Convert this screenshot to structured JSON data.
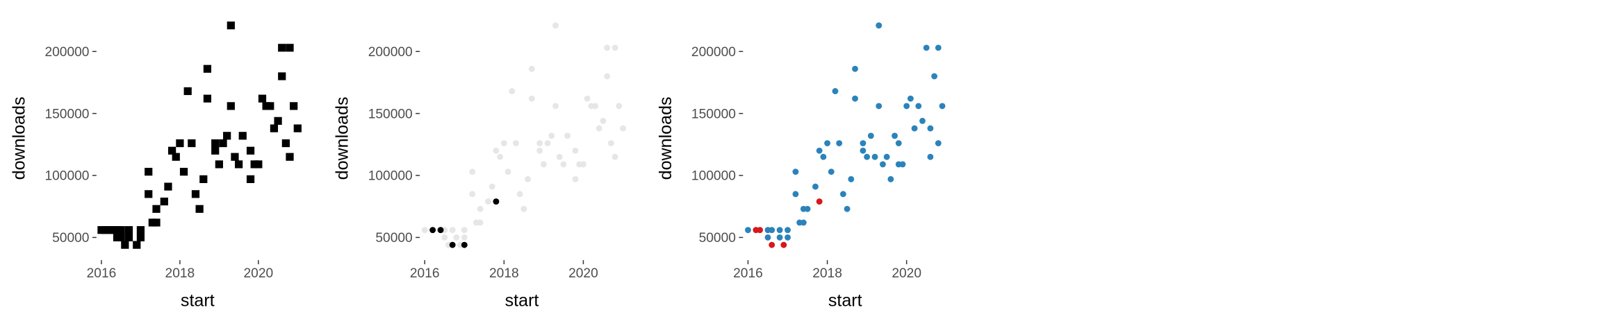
{
  "chart_data": [
    {
      "type": "scatter",
      "marker": "square",
      "xlabel": "start",
      "ylabel": "downloads",
      "xlim": [
        2015.9,
        2021.0
      ],
      "ylim": [
        35000,
        225000
      ],
      "xticks": [
        "2016",
        "2018",
        "2020"
      ],
      "yticks": [
        "50000",
        "100000",
        "150000",
        "200000"
      ],
      "grid": false,
      "colors": {
        "point": "#000000"
      },
      "points": [
        [
          2016.0,
          56000
        ],
        [
          2016.1,
          56000
        ],
        [
          2016.2,
          56000
        ],
        [
          2016.3,
          56000
        ],
        [
          2016.4,
          56000
        ],
        [
          2016.5,
          56000
        ],
        [
          2016.4,
          50000
        ],
        [
          2016.5,
          50000
        ],
        [
          2016.6,
          44000
        ],
        [
          2016.7,
          56000
        ],
        [
          2016.7,
          50000
        ],
        [
          2016.9,
          44000
        ],
        [
          2017.0,
          56000
        ],
        [
          2017.0,
          50000
        ],
        [
          2017.2,
          85000
        ],
        [
          2017.2,
          103000
        ],
        [
          2017.3,
          62000
        ],
        [
          2017.4,
          62000
        ],
        [
          2017.4,
          73000
        ],
        [
          2017.6,
          79000
        ],
        [
          2017.7,
          91000
        ],
        [
          2017.8,
          120000
        ],
        [
          2017.9,
          115000
        ],
        [
          2018.0,
          126000
        ],
        [
          2018.1,
          103000
        ],
        [
          2018.2,
          168000
        ],
        [
          2018.3,
          126000
        ],
        [
          2018.4,
          85000
        ],
        [
          2018.5,
          73000
        ],
        [
          2018.6,
          97000
        ],
        [
          2018.7,
          162000
        ],
        [
          2018.7,
          186000
        ],
        [
          2018.9,
          120000
        ],
        [
          2018.9,
          126000
        ],
        [
          2019.0,
          109000
        ],
        [
          2019.1,
          126000
        ],
        [
          2019.2,
          132000
        ],
        [
          2019.3,
          156000
        ],
        [
          2019.3,
          221000
        ],
        [
          2019.4,
          115000
        ],
        [
          2019.5,
          109000
        ],
        [
          2019.6,
          132000
        ],
        [
          2019.8,
          97000
        ],
        [
          2019.8,
          120000
        ],
        [
          2019.9,
          109000
        ],
        [
          2020.0,
          109000
        ],
        [
          2020.1,
          162000
        ],
        [
          2020.2,
          156000
        ],
        [
          2020.3,
          156000
        ],
        [
          2020.4,
          138000
        ],
        [
          2020.5,
          144000
        ],
        [
          2020.6,
          203000
        ],
        [
          2020.6,
          180000
        ],
        [
          2020.7,
          126000
        ],
        [
          2020.8,
          115000
        ],
        [
          2020.8,
          203000
        ],
        [
          2020.9,
          156000
        ],
        [
          2021.0,
          138000
        ]
      ]
    },
    {
      "type": "scatter",
      "marker": "circle",
      "xlabel": "start",
      "ylabel": "downloads",
      "xlim": [
        2015.9,
        2021.0
      ],
      "ylim": [
        35000,
        225000
      ],
      "xticks": [
        "2016",
        "2018",
        "2020"
      ],
      "yticks": [
        "50000",
        "100000",
        "150000",
        "200000"
      ],
      "grid": false,
      "colors": {
        "base": "#e6e6e6",
        "highlight": "#000000"
      },
      "points": [
        [
          2016.0,
          56000
        ],
        [
          2016.2,
          56000
        ],
        [
          2016.4,
          56000
        ],
        [
          2016.5,
          56000
        ],
        [
          2016.5,
          50000
        ],
        [
          2016.6,
          44000
        ],
        [
          2016.7,
          56000
        ],
        [
          2016.8,
          50000
        ],
        [
          2016.9,
          44000
        ],
        [
          2017.0,
          56000
        ],
        [
          2017.0,
          50000
        ],
        [
          2017.2,
          85000
        ],
        [
          2017.2,
          103000
        ],
        [
          2017.3,
          62000
        ],
        [
          2017.4,
          62000
        ],
        [
          2017.4,
          73000
        ],
        [
          2017.6,
          79000
        ],
        [
          2017.7,
          91000
        ],
        [
          2017.8,
          120000
        ],
        [
          2017.9,
          115000
        ],
        [
          2018.0,
          126000
        ],
        [
          2018.1,
          103000
        ],
        [
          2018.2,
          168000
        ],
        [
          2018.3,
          126000
        ],
        [
          2018.4,
          85000
        ],
        [
          2018.5,
          73000
        ],
        [
          2018.6,
          97000
        ],
        [
          2018.7,
          162000
        ],
        [
          2018.7,
          186000
        ],
        [
          2018.9,
          120000
        ],
        [
          2018.9,
          126000
        ],
        [
          2019.0,
          109000
        ],
        [
          2019.1,
          126000
        ],
        [
          2019.2,
          132000
        ],
        [
          2019.3,
          156000
        ],
        [
          2019.3,
          221000
        ],
        [
          2019.4,
          115000
        ],
        [
          2019.5,
          109000
        ],
        [
          2019.6,
          132000
        ],
        [
          2019.8,
          97000
        ],
        [
          2019.8,
          120000
        ],
        [
          2019.9,
          109000
        ],
        [
          2020.0,
          109000
        ],
        [
          2020.1,
          162000
        ],
        [
          2020.2,
          156000
        ],
        [
          2020.3,
          156000
        ],
        [
          2020.4,
          138000
        ],
        [
          2020.5,
          144000
        ],
        [
          2020.6,
          203000
        ],
        [
          2020.6,
          180000
        ],
        [
          2020.7,
          126000
        ],
        [
          2020.8,
          115000
        ],
        [
          2020.8,
          203000
        ],
        [
          2020.9,
          156000
        ],
        [
          2021.0,
          138000
        ]
      ],
      "highlighted_points": [
        [
          2016.2,
          56000
        ],
        [
          2016.4,
          56000
        ],
        [
          2016.7,
          44000
        ],
        [
          2017.0,
          44000
        ],
        [
          2017.8,
          79000
        ]
      ]
    },
    {
      "type": "scatter",
      "marker": "circle",
      "xlabel": "start",
      "ylabel": "downloads",
      "xlim": [
        2015.9,
        2021.0
      ],
      "ylim": [
        35000,
        225000
      ],
      "xticks": [
        "2016",
        "2018",
        "2020"
      ],
      "yticks": [
        "50000",
        "100000",
        "150000",
        "200000"
      ],
      "grid": false,
      "colors": {
        "base": "#2b83ba",
        "highlight": "#d7191c"
      },
      "points": [
        [
          2016.0,
          56000
        ],
        [
          2016.5,
          56000
        ],
        [
          2016.5,
          50000
        ],
        [
          2016.6,
          56000
        ],
        [
          2016.8,
          50000
        ],
        [
          2016.8,
          56000
        ],
        [
          2017.0,
          56000
        ],
        [
          2017.0,
          50000
        ],
        [
          2017.2,
          85000
        ],
        [
          2017.2,
          103000
        ],
        [
          2017.3,
          62000
        ],
        [
          2017.4,
          62000
        ],
        [
          2017.4,
          73000
        ],
        [
          2017.5,
          73000
        ],
        [
          2017.7,
          91000
        ],
        [
          2017.8,
          120000
        ],
        [
          2017.9,
          115000
        ],
        [
          2018.0,
          126000
        ],
        [
          2018.1,
          103000
        ],
        [
          2018.2,
          168000
        ],
        [
          2018.3,
          126000
        ],
        [
          2018.4,
          85000
        ],
        [
          2018.5,
          73000
        ],
        [
          2018.6,
          97000
        ],
        [
          2018.7,
          162000
        ],
        [
          2018.7,
          186000
        ],
        [
          2018.9,
          120000
        ],
        [
          2018.9,
          126000
        ],
        [
          2019.0,
          115000
        ],
        [
          2019.1,
          132000
        ],
        [
          2019.2,
          115000
        ],
        [
          2019.3,
          156000
        ],
        [
          2019.3,
          221000
        ],
        [
          2019.4,
          109000
        ],
        [
          2019.5,
          115000
        ],
        [
          2019.6,
          97000
        ],
        [
          2019.7,
          132000
        ],
        [
          2019.8,
          109000
        ],
        [
          2019.8,
          126000
        ],
        [
          2019.9,
          109000
        ],
        [
          2020.0,
          156000
        ],
        [
          2020.1,
          162000
        ],
        [
          2020.2,
          138000
        ],
        [
          2020.3,
          156000
        ],
        [
          2020.4,
          144000
        ],
        [
          2020.5,
          203000
        ],
        [
          2020.6,
          115000
        ],
        [
          2020.6,
          138000
        ],
        [
          2020.7,
          180000
        ],
        [
          2020.8,
          203000
        ],
        [
          2020.8,
          126000
        ],
        [
          2020.9,
          156000
        ]
      ],
      "highlighted_points": [
        [
          2016.2,
          56000
        ],
        [
          2016.3,
          56000
        ],
        [
          2016.6,
          44000
        ],
        [
          2016.9,
          44000
        ],
        [
          2017.8,
          79000
        ]
      ]
    }
  ]
}
